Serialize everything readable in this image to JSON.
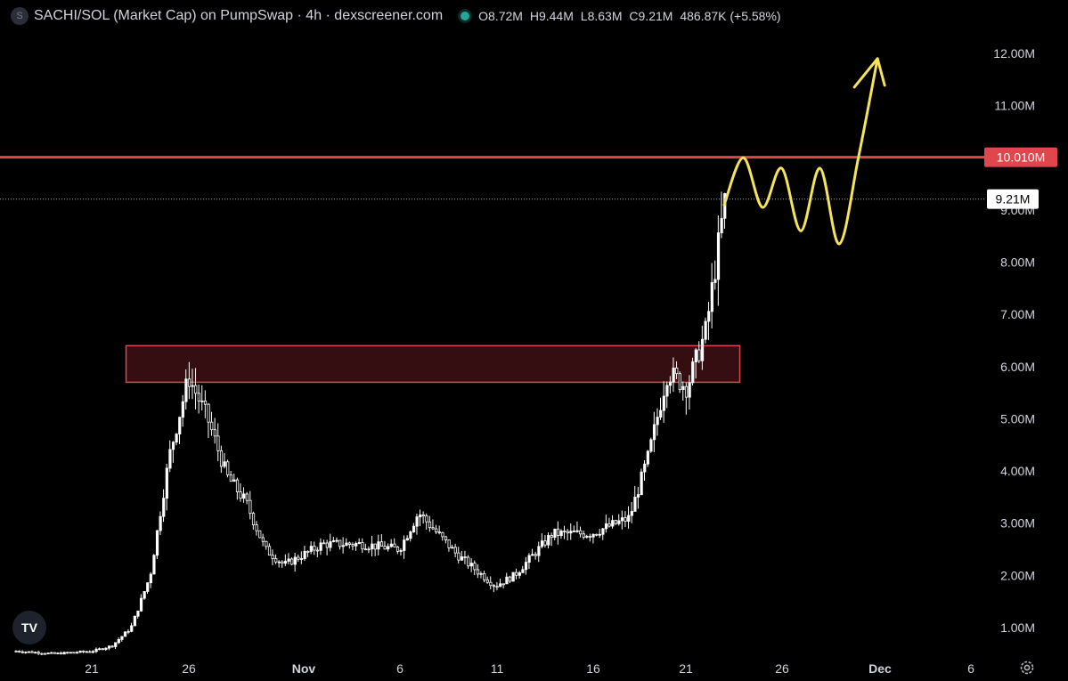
{
  "header": {
    "symbol_icon": "S",
    "title": "SACHI/SOL (Market Cap) on PumpSwap · 4h · dexscreener.com",
    "ohlc": [
      {
        "k": "O",
        "v": "8.72M"
      },
      {
        "k": "H",
        "v": "9.44M"
      },
      {
        "k": "L",
        "v": "8.63M"
      },
      {
        "k": "C",
        "v": "9.21M"
      },
      {
        "k": "",
        "v": "486.87K (+5.58%)"
      }
    ]
  },
  "colors": {
    "background": "#000000",
    "candle": "#ffffff",
    "resistance": "#e0474c",
    "zone_fill": "#3a0f12",
    "projection": "#f5e35b"
  },
  "chart_data": {
    "type": "candlestick",
    "y_unit": "M",
    "ylim": [
      0.6,
      12.5
    ],
    "y_ticks": [
      {
        "v": 1,
        "label": "1.00M"
      },
      {
        "v": 2,
        "label": "2.00M"
      },
      {
        "v": 3,
        "label": "3.00M"
      },
      {
        "v": 4,
        "label": "4.00M"
      },
      {
        "v": 5,
        "label": "5.00M"
      },
      {
        "v": 6,
        "label": "6.00M"
      },
      {
        "v": 7,
        "label": "7.00M"
      },
      {
        "v": 8,
        "label": "8.00M"
      },
      {
        "v": 9,
        "label": "9.00M"
      },
      {
        "v": 10,
        "label": "10.00M"
      },
      {
        "v": 11,
        "label": "11.00M"
      },
      {
        "v": 12,
        "label": "12.00M"
      }
    ],
    "x_ticks": [
      "21",
      "26",
      "Nov",
      "6",
      "11",
      "16",
      "21",
      "26",
      "Dec",
      "6"
    ],
    "current_price": {
      "value": 9.21,
      "label": "9.21M"
    },
    "resistance": {
      "value": 10.01,
      "label": "10.010M"
    },
    "zone": {
      "low": 5.7,
      "high": 6.4,
      "x_start": "Oct 24",
      "x_end": "Nov 24"
    },
    "series": [
      {
        "date": "Oct 17",
        "close": 0.55
      },
      {
        "date": "Oct 19",
        "close": 0.5
      },
      {
        "date": "Oct 21",
        "close": 0.55
      },
      {
        "date": "Oct 22",
        "close": 0.65
      },
      {
        "date": "Oct 23",
        "close": 1.0
      },
      {
        "date": "Oct 24",
        "close": 2.0
      },
      {
        "date": "Oct 25",
        "close": 4.3
      },
      {
        "date": "Oct 26",
        "close": 5.8
      },
      {
        "date": "Oct 27",
        "close": 5.0
      },
      {
        "date": "Oct 28",
        "close": 3.9
      },
      {
        "date": "Oct 29",
        "close": 3.4
      },
      {
        "date": "Oct 30",
        "close": 2.5
      },
      {
        "date": "Oct 31",
        "close": 2.2
      },
      {
        "date": "Nov 2",
        "close": 2.6
      },
      {
        "date": "Nov 4",
        "close": 2.6
      },
      {
        "date": "Nov 6",
        "close": 2.5
      },
      {
        "date": "Nov 7",
        "close": 3.2
      },
      {
        "date": "Nov 9",
        "close": 2.4
      },
      {
        "date": "Nov 11",
        "close": 1.8
      },
      {
        "date": "Nov 12",
        "close": 2.0
      },
      {
        "date": "Nov 14",
        "close": 2.8
      },
      {
        "date": "Nov 16",
        "close": 2.8
      },
      {
        "date": "Nov 18",
        "close": 3.1
      },
      {
        "date": "Nov 19",
        "close": 4.3
      },
      {
        "date": "Nov 20",
        "close": 5.9
      },
      {
        "date": "Nov 21",
        "close": 5.6
      },
      {
        "date": "Nov 22",
        "close": 6.7
      },
      {
        "date": "Nov 23",
        "close": 9.21
      }
    ],
    "projection": [
      {
        "date": "Nov 23",
        "value": 9.1
      },
      {
        "date": "Nov 24",
        "value": 10.0
      },
      {
        "date": "Nov 25",
        "value": 9.05
      },
      {
        "date": "Nov 26",
        "value": 9.8
      },
      {
        "date": "Nov 27",
        "value": 8.6
      },
      {
        "date": "Nov 28",
        "value": 9.8
      },
      {
        "date": "Nov 29",
        "value": 8.35
      },
      {
        "date": "Nov 30",
        "value": 10.0
      },
      {
        "date": "Dec 1",
        "value": 11.9
      }
    ]
  },
  "branding": {
    "logo": "TV",
    "settings_icon": "gear-icon"
  }
}
